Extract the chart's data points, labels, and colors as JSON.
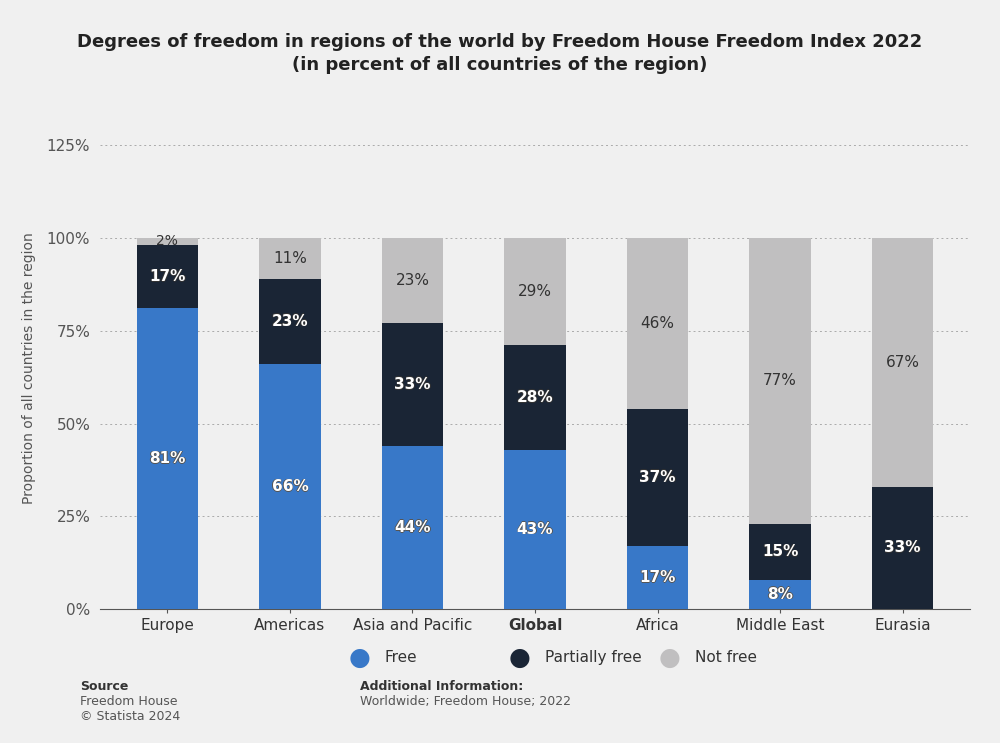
{
  "title_line1": "Degrees of freedom in regions of the world by Freedom House Freedom Index 2022",
  "title_line2": "(in percent of all countries of the region)",
  "ylabel": "Proportion of all countries in the region",
  "categories": [
    "Europe",
    "Americas",
    "Asia and Pacific",
    "Global",
    "Africa",
    "Middle East",
    "Eurasia"
  ],
  "free": [
    81,
    66,
    44,
    43,
    17,
    8,
    0
  ],
  "partially_free": [
    17,
    23,
    33,
    28,
    37,
    15,
    33
  ],
  "not_free": [
    2,
    11,
    23,
    29,
    46,
    77,
    67
  ],
  "color_free": "#3878c8",
  "color_partially_free": "#1a2535",
  "color_not_free": "#c0bfc0",
  "background_color": "#f0f0f0",
  "ylim": [
    0,
    130
  ],
  "yticks": [
    0,
    25,
    50,
    75,
    100,
    125
  ],
  "ytick_labels": [
    "0%",
    "25%",
    "50%",
    "75%",
    "100%",
    "125%"
  ],
  "source_bold": "Source",
  "source_normal": "Freedom House\n© Statista 2024",
  "additional_bold": "Additional Information:",
  "additional_normal": "Worldwide; Freedom House; 2022",
  "legend_labels": [
    "Free",
    "Partially free",
    "Not free"
  ]
}
